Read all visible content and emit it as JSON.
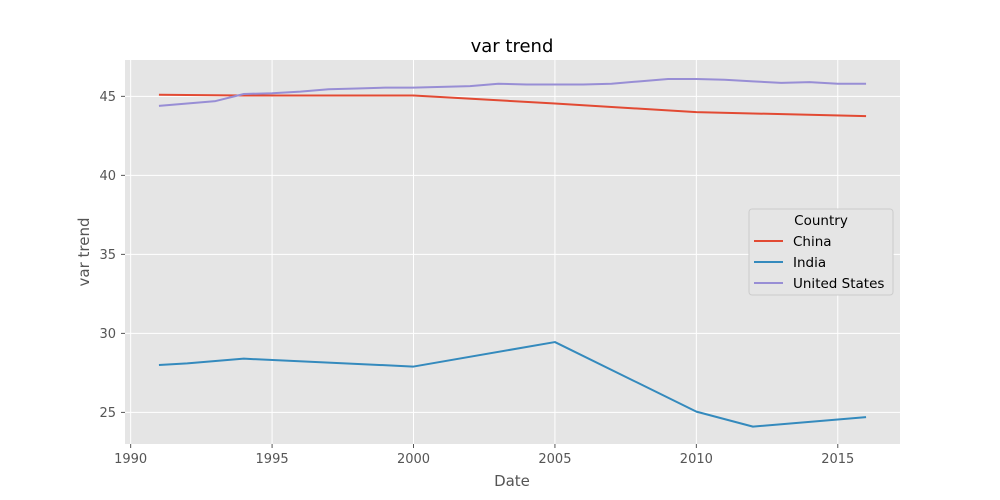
{
  "chart_data": {
    "type": "line",
    "title": "var trend",
    "xlabel": "Date",
    "ylabel": "var trend",
    "xlim": [
      1989.8,
      2017.2
    ],
    "ylim": [
      23.0,
      47.3
    ],
    "xticks": [
      1990,
      1995,
      2000,
      2005,
      2010,
      2015
    ],
    "yticks": [
      25,
      30,
      35,
      40,
      45
    ],
    "grid": true,
    "legend": {
      "title": "Country",
      "position": "center-right"
    },
    "series": [
      {
        "name": "China",
        "color": "#E24A33",
        "x": [
          1991,
          1994,
          1995,
          2000,
          2005,
          2010,
          2016
        ],
        "y": [
          45.1,
          45.05,
          45.05,
          45.05,
          44.55,
          44.0,
          43.75
        ]
      },
      {
        "name": "India",
        "color": "#348ABD",
        "x": [
          1991,
          1992,
          1993,
          1994,
          2000,
          2005,
          2010,
          2012,
          2016
        ],
        "y": [
          28.0,
          28.1,
          28.25,
          28.4,
          27.9,
          29.45,
          25.05,
          24.1,
          24.7
        ]
      },
      {
        "name": "United States",
        "color": "#988ED5",
        "x": [
          1991,
          1992,
          1993,
          1994,
          1995,
          1996,
          1997,
          1998,
          1999,
          2000,
          2001,
          2002,
          2003,
          2004,
          2005,
          2006,
          2007,
          2008,
          2009,
          2010,
          2011,
          2012,
          2013,
          2014,
          2015,
          2016
        ],
        "y": [
          44.4,
          44.55,
          44.7,
          45.15,
          45.2,
          45.3,
          45.45,
          45.5,
          45.55,
          45.55,
          45.6,
          45.65,
          45.8,
          45.75,
          45.75,
          45.75,
          45.8,
          45.95,
          46.1,
          46.1,
          46.05,
          45.95,
          45.85,
          45.9,
          45.8,
          45.8
        ]
      }
    ]
  }
}
